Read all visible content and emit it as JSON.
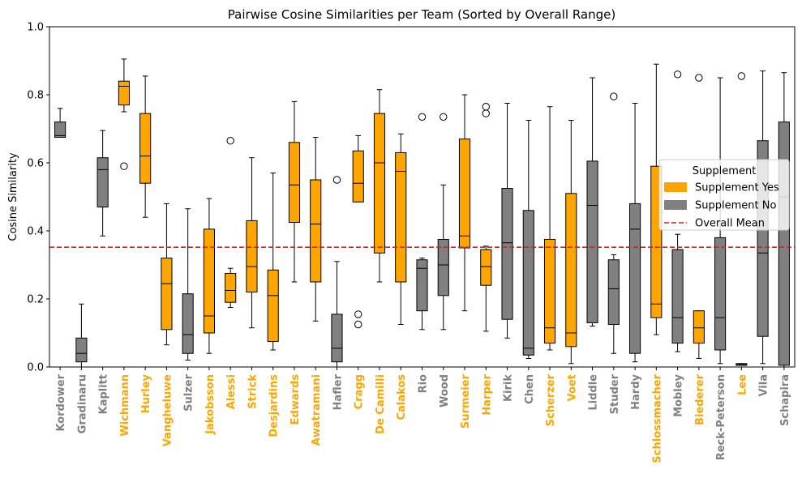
{
  "chart_data": {
    "type": "box",
    "title": "Pairwise Cosine Similarities per Team (Sorted by Overall Range)",
    "xlabel": "",
    "ylabel": "Cosine Similarity",
    "ylim": [
      0.0,
      1.0
    ],
    "yticks": [
      "0.0",
      "0.2",
      "0.4",
      "0.6",
      "0.8",
      "1.0"
    ],
    "overall_mean": 0.352,
    "grid": false,
    "colors": {
      "yes": "#ffa500",
      "no": "#808080",
      "mean_line": "#e31a1c"
    },
    "legend": {
      "title": "Supplement",
      "placement": "center-right",
      "items": [
        {
          "label": "Supplement Yes",
          "kind": "patch",
          "color": "#ffa500"
        },
        {
          "label": "Supplement No",
          "kind": "patch",
          "color": "#808080"
        },
        {
          "label": "Overall Mean",
          "kind": "dashed-line",
          "color": "#e31a1c"
        }
      ]
    },
    "boxes": [
      {
        "name": "Kordower",
        "supplement": "no",
        "whislo": 0.675,
        "q1": 0.675,
        "med": 0.68,
        "q3": 0.72,
        "whishi": 0.76,
        "fliers": []
      },
      {
        "name": "Gradinaru",
        "supplement": "no",
        "whislo": 0.0,
        "q1": 0.015,
        "med": 0.04,
        "q3": 0.085,
        "whishi": 0.185,
        "fliers": []
      },
      {
        "name": "Kaplitt",
        "supplement": "no",
        "whislo": 0.385,
        "q1": 0.47,
        "med": 0.58,
        "q3": 0.615,
        "whishi": 0.695,
        "fliers": []
      },
      {
        "name": "Wichmann",
        "supplement": "yes",
        "whislo": 0.75,
        "q1": 0.77,
        "med": 0.825,
        "q3": 0.84,
        "whishi": 0.905,
        "fliers": [
          0.59
        ]
      },
      {
        "name": "Hurley",
        "supplement": "yes",
        "whislo": 0.44,
        "q1": 0.54,
        "med": 0.62,
        "q3": 0.745,
        "whishi": 0.855,
        "fliers": []
      },
      {
        "name": "Vangheluwe",
        "supplement": "yes",
        "whislo": 0.065,
        "q1": 0.11,
        "med": 0.245,
        "q3": 0.32,
        "whishi": 0.48,
        "fliers": []
      },
      {
        "name": "Sulzer",
        "supplement": "no",
        "whislo": 0.02,
        "q1": 0.04,
        "med": 0.095,
        "q3": 0.215,
        "whishi": 0.465,
        "fliers": []
      },
      {
        "name": "Jakobsson",
        "supplement": "yes",
        "whislo": 0.04,
        "q1": 0.1,
        "med": 0.15,
        "q3": 0.405,
        "whishi": 0.495,
        "fliers": []
      },
      {
        "name": "Alessi",
        "supplement": "yes",
        "whislo": 0.175,
        "q1": 0.19,
        "med": 0.225,
        "q3": 0.275,
        "whishi": 0.29,
        "fliers": [
          0.665
        ]
      },
      {
        "name": "Strick",
        "supplement": "yes",
        "whislo": 0.115,
        "q1": 0.22,
        "med": 0.295,
        "q3": 0.43,
        "whishi": 0.615,
        "fliers": []
      },
      {
        "name": "Desjardins",
        "supplement": "yes",
        "whislo": 0.05,
        "q1": 0.075,
        "med": 0.21,
        "q3": 0.285,
        "whishi": 0.57,
        "fliers": []
      },
      {
        "name": "Edwards",
        "supplement": "yes",
        "whislo": 0.25,
        "q1": 0.425,
        "med": 0.535,
        "q3": 0.66,
        "whishi": 0.78,
        "fliers": []
      },
      {
        "name": "Awatramani",
        "supplement": "yes",
        "whislo": 0.135,
        "q1": 0.25,
        "med": 0.42,
        "q3": 0.55,
        "whishi": 0.675,
        "fliers": []
      },
      {
        "name": "Hafler",
        "supplement": "no",
        "whislo": 0.0,
        "q1": 0.015,
        "med": 0.055,
        "q3": 0.155,
        "whishi": 0.31,
        "fliers": [
          0.55
        ]
      },
      {
        "name": "Cragg",
        "supplement": "yes",
        "whislo": 0.485,
        "q1": 0.485,
        "med": 0.54,
        "q3": 0.635,
        "whishi": 0.68,
        "fliers": [
          0.155,
          0.125
        ]
      },
      {
        "name": "De Camilli",
        "supplement": "yes",
        "whislo": 0.25,
        "q1": 0.335,
        "med": 0.6,
        "q3": 0.745,
        "whishi": 0.815,
        "fliers": []
      },
      {
        "name": "Calakos",
        "supplement": "yes",
        "whislo": 0.125,
        "q1": 0.25,
        "med": 0.575,
        "q3": 0.63,
        "whishi": 0.685,
        "fliers": []
      },
      {
        "name": "Rio",
        "supplement": "no",
        "whislo": 0.11,
        "q1": 0.165,
        "med": 0.29,
        "q3": 0.315,
        "whishi": 0.32,
        "fliers": [
          0.735
        ]
      },
      {
        "name": "Wood",
        "supplement": "no",
        "whislo": 0.11,
        "q1": 0.21,
        "med": 0.3,
        "q3": 0.375,
        "whishi": 0.535,
        "fliers": [
          0.735
        ]
      },
      {
        "name": "Surmeier",
        "supplement": "yes",
        "whislo": 0.165,
        "q1": 0.35,
        "med": 0.385,
        "q3": 0.67,
        "whishi": 0.8,
        "fliers": []
      },
      {
        "name": "Harper",
        "supplement": "yes",
        "whislo": 0.105,
        "q1": 0.24,
        "med": 0.295,
        "q3": 0.345,
        "whishi": 0.355,
        "fliers": [
          0.765,
          0.745
        ]
      },
      {
        "name": "Kirik",
        "supplement": "no",
        "whislo": 0.085,
        "q1": 0.14,
        "med": 0.365,
        "q3": 0.525,
        "whishi": 0.775,
        "fliers": []
      },
      {
        "name": "Chen",
        "supplement": "no",
        "whislo": 0.025,
        "q1": 0.035,
        "med": 0.055,
        "q3": 0.46,
        "whishi": 0.725,
        "fliers": []
      },
      {
        "name": "Scherzer",
        "supplement": "yes",
        "whislo": 0.05,
        "q1": 0.07,
        "med": 0.115,
        "q3": 0.375,
        "whishi": 0.765,
        "fliers": []
      },
      {
        "name": "Voet",
        "supplement": "yes",
        "whislo": 0.01,
        "q1": 0.06,
        "med": 0.1,
        "q3": 0.51,
        "whishi": 0.725,
        "fliers": []
      },
      {
        "name": "Liddle",
        "supplement": "no",
        "whislo": 0.12,
        "q1": 0.13,
        "med": 0.475,
        "q3": 0.605,
        "whishi": 0.85,
        "fliers": []
      },
      {
        "name": "Studer",
        "supplement": "no",
        "whislo": 0.04,
        "q1": 0.125,
        "med": 0.23,
        "q3": 0.315,
        "whishi": 0.33,
        "fliers": [
          0.795
        ]
      },
      {
        "name": "Hardy",
        "supplement": "no",
        "whislo": 0.015,
        "q1": 0.04,
        "med": 0.405,
        "q3": 0.48,
        "whishi": 0.775,
        "fliers": []
      },
      {
        "name": "Schlossmacher",
        "supplement": "yes",
        "whislo": 0.095,
        "q1": 0.145,
        "med": 0.185,
        "q3": 0.59,
        "whishi": 0.89,
        "fliers": []
      },
      {
        "name": "Mobley",
        "supplement": "no",
        "whislo": 0.045,
        "q1": 0.07,
        "med": 0.145,
        "q3": 0.345,
        "whishi": 0.39,
        "fliers": [
          0.86
        ]
      },
      {
        "name": "Biederer",
        "supplement": "yes",
        "whislo": 0.025,
        "q1": 0.07,
        "med": 0.115,
        "q3": 0.165,
        "whishi": 0.165,
        "fliers": [
          0.85
        ]
      },
      {
        "name": "Reck-Peterson",
        "supplement": "no",
        "whislo": 0.01,
        "q1": 0.05,
        "med": 0.145,
        "q3": 0.38,
        "whishi": 0.85,
        "fliers": []
      },
      {
        "name": "Lee",
        "supplement": "yes",
        "whislo": 0.005,
        "q1": 0.005,
        "med": 0.007,
        "q3": 0.01,
        "whishi": 0.01,
        "fliers": [
          0.855
        ]
      },
      {
        "name": "Vila",
        "supplement": "no",
        "whislo": 0.01,
        "q1": 0.09,
        "med": 0.335,
        "q3": 0.665,
        "whishi": 0.87,
        "fliers": []
      },
      {
        "name": "Schapira",
        "supplement": "no",
        "whislo": 0.0,
        "q1": 0.005,
        "med": 0.5,
        "q3": 0.72,
        "whishi": 0.865,
        "fliers": []
      }
    ]
  }
}
